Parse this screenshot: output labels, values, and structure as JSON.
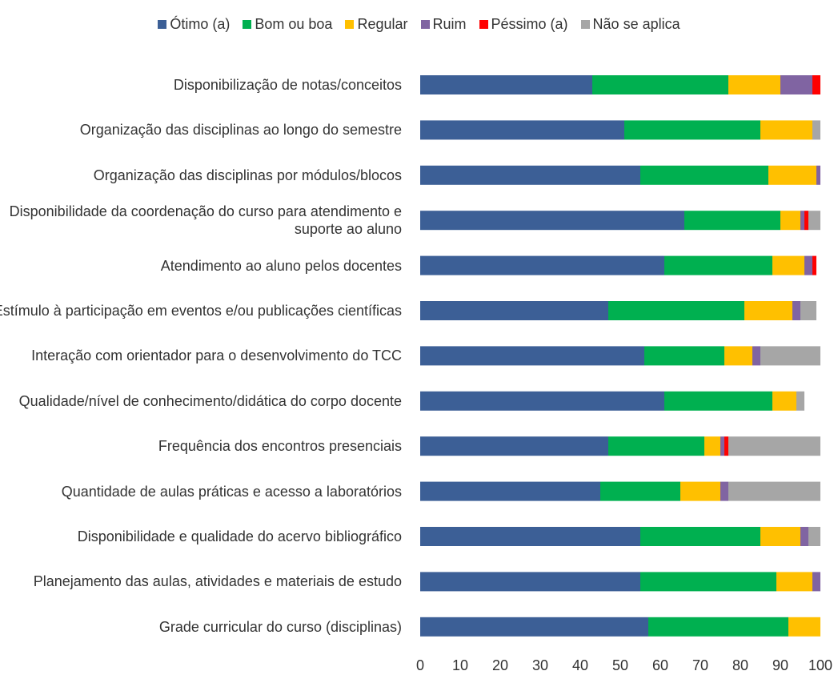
{
  "chart_data": {
    "type": "stacked_barh",
    "categories": [
      "Disponibilização de notas/conceitos",
      "Organização das disciplinas ao longo do semestre",
      "Organização das disciplinas por módulos/blocos",
      "Disponibilidade da coordenação do curso para atendimento e suporte ao aluno",
      "Atendimento ao aluno pelos docentes",
      "Estímulo à participação em eventos e/ou publicações científicas",
      "Interação com orientador para o desenvolvimento do TCC",
      "Qualidade/nível de conhecimento/didática do corpo docente",
      "Frequência dos encontros presenciais",
      "Quantidade de aulas práticas e acesso a laboratórios",
      "Disponibilidade e qualidade do acervo bibliográfico",
      "Planejamento das aulas, atividades e materiais de estudo",
      "Grade curricular do curso (disciplinas)"
    ],
    "series": [
      {
        "name": "Ótimo (a)",
        "color": "#3c5f96",
        "values": [
          43,
          51,
          55,
          66,
          61,
          47,
          56,
          61,
          47,
          45,
          55,
          55,
          57
        ]
      },
      {
        "name": "Bom ou boa",
        "color": "#00b050",
        "values": [
          34,
          34,
          32,
          24,
          27,
          34,
          20,
          27,
          24,
          20,
          30,
          34,
          35
        ]
      },
      {
        "name": "Regular",
        "color": "#ffc000",
        "values": [
          13,
          13,
          12,
          5,
          8,
          12,
          7,
          6,
          4,
          10,
          10,
          9,
          8
        ]
      },
      {
        "name": "Ruim",
        "color": "#8064a2",
        "values": [
          8,
          0,
          1,
          1,
          2,
          2,
          2,
          0,
          1,
          2,
          2,
          2,
          0
        ]
      },
      {
        "name": "Péssimo (a)",
        "color": "#ff0000",
        "values": [
          2,
          0,
          0,
          1,
          1,
          0,
          0,
          0,
          1,
          0,
          0,
          0,
          0
        ]
      },
      {
        "name": "Não se aplica",
        "color": "#a6a6a6",
        "values": [
          0,
          2,
          0,
          3,
          0,
          4,
          15,
          2,
          23,
          23,
          3,
          0,
          0
        ]
      }
    ],
    "xlim": [
      0,
      100
    ],
    "xticks": [
      0,
      10,
      20,
      30,
      40,
      50,
      60,
      70,
      80,
      90,
      100
    ]
  }
}
